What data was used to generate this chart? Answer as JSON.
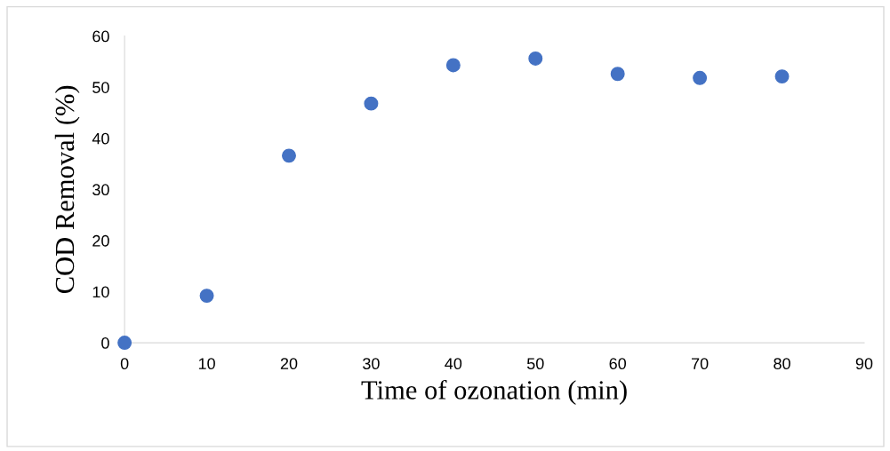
{
  "chart_data": {
    "type": "scatter",
    "xlabel": "Time of ozonation (min)",
    "ylabel": "COD Removal (%)",
    "x": [
      0,
      10,
      20,
      30,
      40,
      50,
      60,
      70,
      80
    ],
    "series": [
      {
        "color": "#4472c4",
        "values": [
          0,
          9.2,
          36.6,
          46.8,
          54.3,
          55.6,
          52.6,
          51.8,
          52.1
        ]
      }
    ],
    "xlim": [
      0,
      90
    ],
    "xticks": [
      0,
      10,
      20,
      30,
      40,
      50,
      60,
      70,
      80,
      90
    ],
    "ylim": [
      0,
      60
    ],
    "yticks": [
      0,
      10,
      20,
      30,
      40,
      50,
      60
    ],
    "grid": false,
    "legend": false,
    "marker": "circle"
  }
}
